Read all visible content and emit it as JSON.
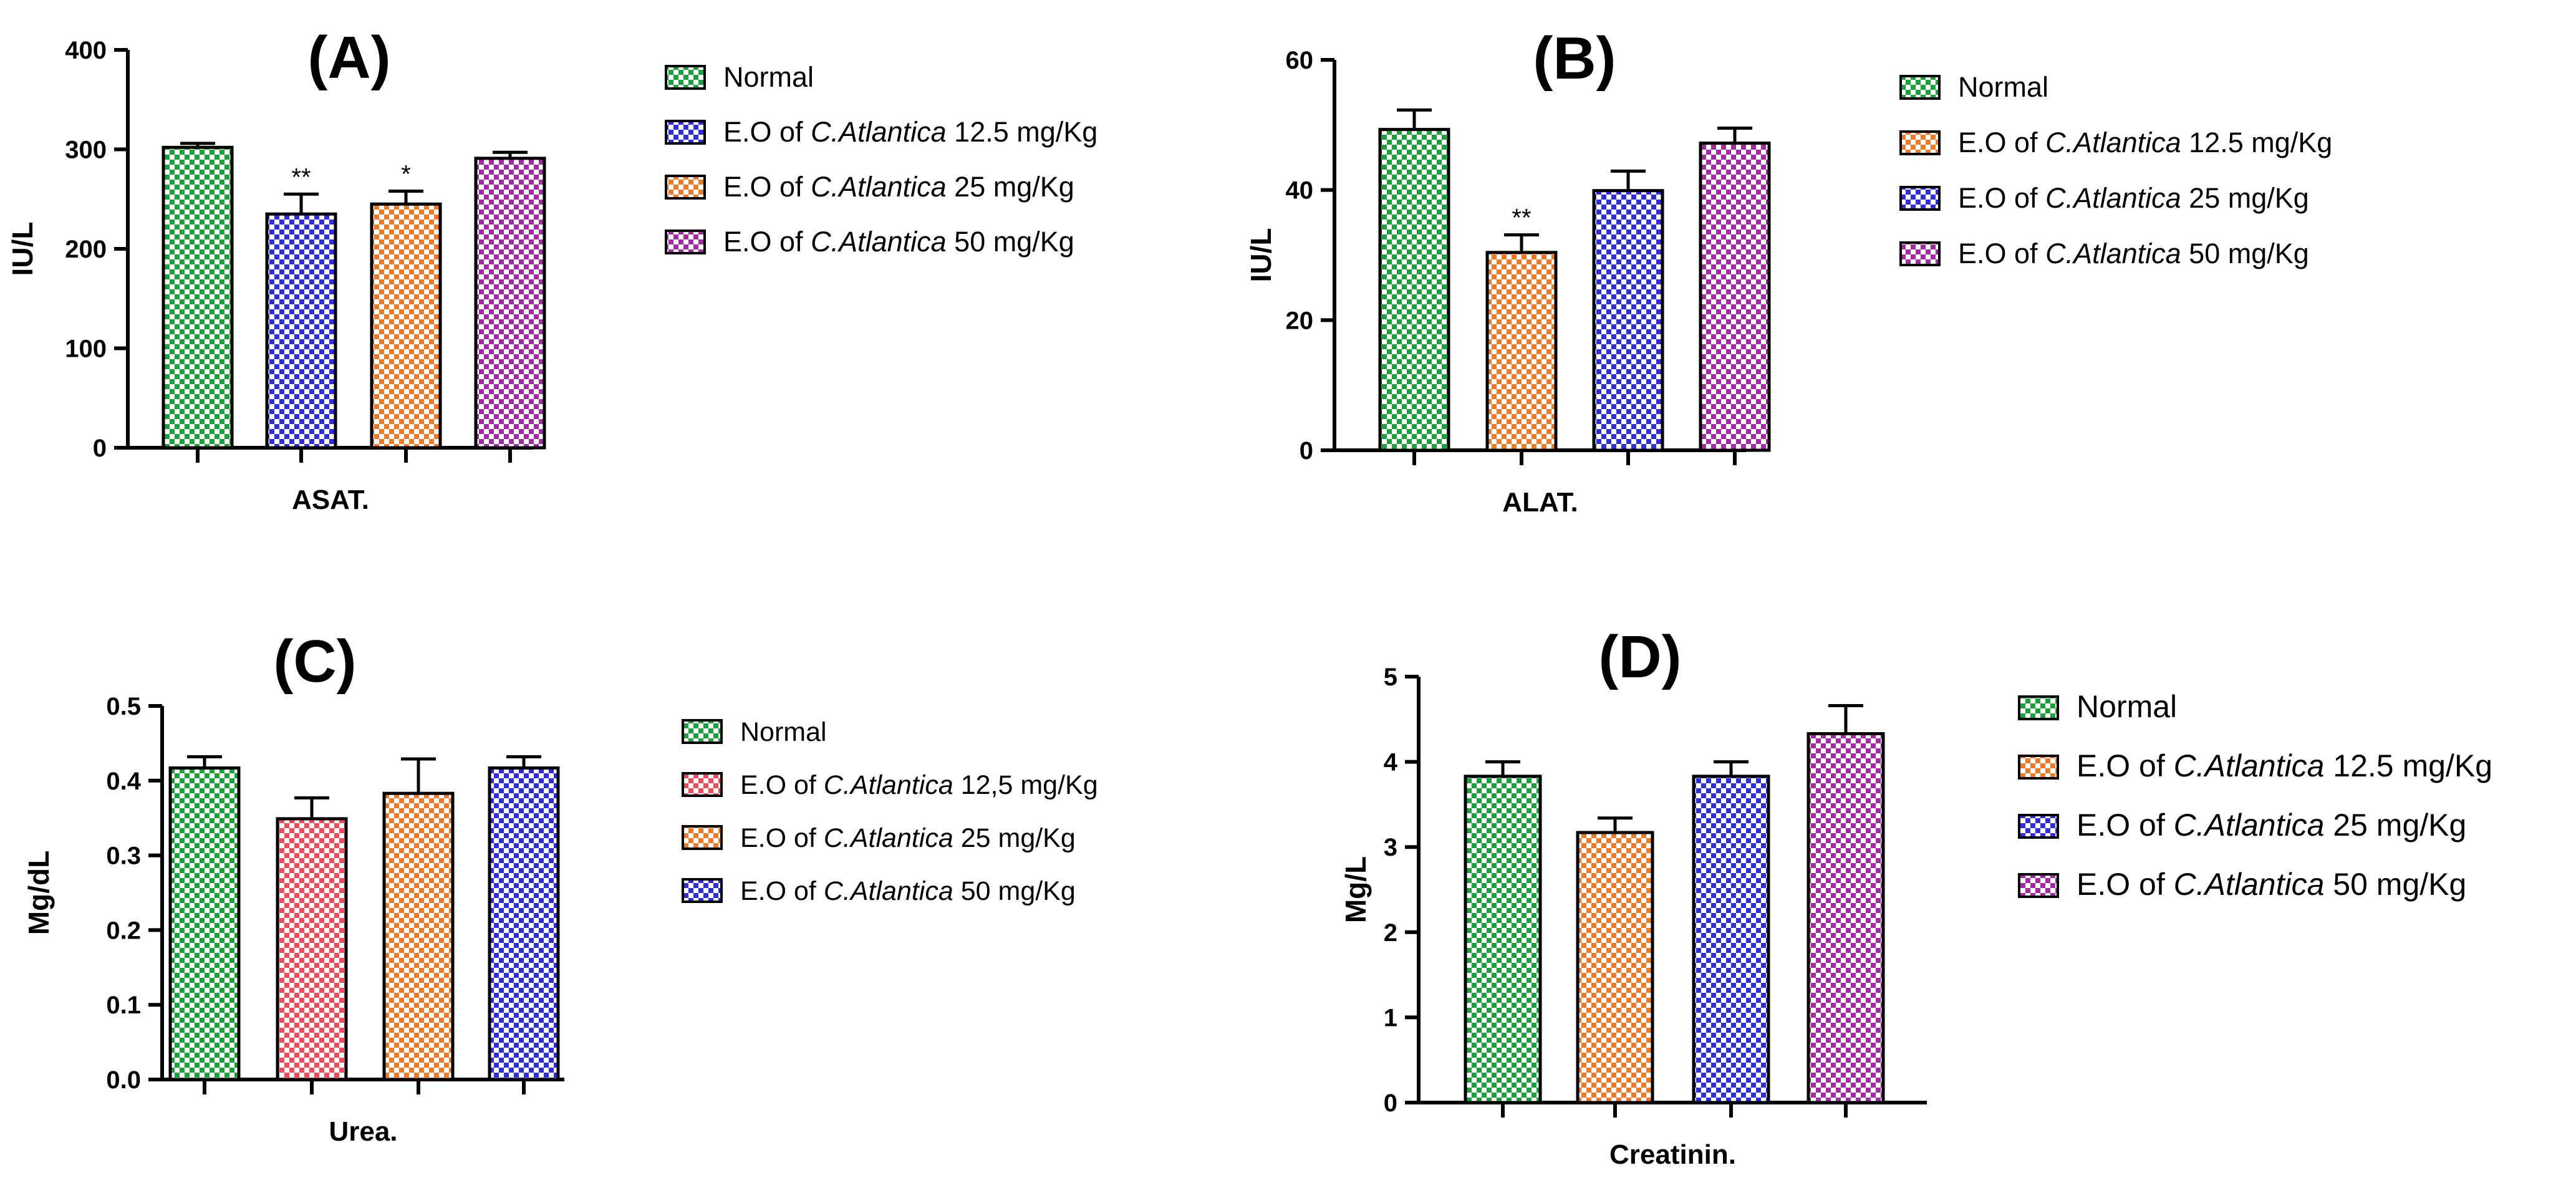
{
  "figure": {
    "panels": [
      {
        "id": "A",
        "panel_label": "(A)",
        "chart_data": {
          "type": "bar",
          "title": "(A)",
          "xlabel": "ASAT.",
          "ylabel": "IU/L",
          "ylim": [
            0,
            400
          ],
          "yticks": [
            0,
            100,
            200,
            300,
            400
          ],
          "ytick_labels": [
            "0",
            "100",
            "200",
            "300",
            "400"
          ],
          "series": [
            {
              "name": "Normal",
              "name_prefix": "Normal",
              "name_italic": "",
              "name_suffix": "",
              "color": "#1aa33a",
              "value": 302,
              "error": 4,
              "sig": ""
            },
            {
              "name": "E.O of C.Atlantica 12.5 mg/Kg",
              "name_prefix": "E.O of ",
              "name_italic": "C.Atlantica",
              "name_suffix": " 12.5 mg/Kg",
              "color": "#2e2ee0",
              "value": 235,
              "error": 20,
              "sig": "**"
            },
            {
              "name": "E.O of C.Atlantica 25 mg/Kg",
              "name_prefix": "E.O of ",
              "name_italic": "C.Atlantica",
              "name_suffix": " 25 mg/Kg",
              "color": "#f07a26",
              "value": 245,
              "error": 13,
              "sig": "*"
            },
            {
              "name": "E.O of C.Atlantica 50 mg/Kg",
              "name_prefix": "E.O of ",
              "name_italic": "C.Atlantica",
              "name_suffix": " 50 mg/Kg",
              "color": "#a62aa6",
              "value": 291,
              "error": 6,
              "sig": ""
            }
          ]
        }
      },
      {
        "id": "B",
        "panel_label": "(B)",
        "chart_data": {
          "type": "bar",
          "title": "(B)",
          "xlabel": "ALAT.",
          "ylabel": "IU/L",
          "ylim": [
            0,
            60
          ],
          "yticks": [
            0,
            20,
            40,
            60
          ],
          "ytick_labels": [
            "0",
            "20",
            "40",
            "60"
          ],
          "series": [
            {
              "name": "Normal",
              "name_prefix": "Normal",
              "name_italic": "",
              "name_suffix": "",
              "color": "#1aa33a",
              "value": 49.3,
              "error": 3,
              "sig": ""
            },
            {
              "name": "E.O of C.Atlantica 12.5 mg/Kg",
              "name_prefix": "E.O of ",
              "name_italic": "C.Atlantica",
              "name_suffix": " 12.5 mg/Kg",
              "color": "#f07a26",
              "value": 30.4,
              "error": 2.7,
              "sig": "**"
            },
            {
              "name": "E.O of C.Atlantica 25 mg/Kg",
              "name_prefix": "E.O of ",
              "name_italic": "C.Atlantica",
              "name_suffix": " 25 mg/Kg",
              "color": "#2e2ee0",
              "value": 39.9,
              "error": 3,
              "sig": ""
            },
            {
              "name": "E.O of C.Atlantica 50 mg/Kg",
              "name_prefix": "E.O of ",
              "name_italic": "C.Atlantica",
              "name_suffix": " 50 mg/Kg",
              "color": "#a62aa6",
              "value": 47.2,
              "error": 2.3,
              "sig": ""
            }
          ]
        }
      },
      {
        "id": "C",
        "panel_label": "(C)",
        "chart_data": {
          "type": "bar",
          "title": "(C)",
          "xlabel": "Urea.",
          "ylabel": "Mg/dL",
          "ylim": [
            0,
            0.5
          ],
          "yticks": [
            0,
            0.1,
            0.2,
            0.3,
            0.4,
            0.5
          ],
          "ytick_labels": [
            "0.0",
            "0.1",
            "0.2",
            "0.3",
            "0.4",
            "0.5"
          ],
          "series": [
            {
              "name": "Normal",
              "name_prefix": "Normal",
              "name_italic": "",
              "name_suffix": "",
              "color": "#1aa33a",
              "value": 0.417,
              "error": 0.015,
              "sig": ""
            },
            {
              "name": "E.O of C.Atlantica 12,5 mg/Kg",
              "name_prefix": "E.O of ",
              "name_italic": "C.Atlantica",
              "name_suffix": " 12,5 mg/Kg",
              "color": "#f04a58",
              "value": 0.349,
              "error": 0.028,
              "sig": ""
            },
            {
              "name": "E.O of C.Atlantica 25 mg/Kg",
              "name_prefix": "E.O of ",
              "name_italic": "C.Atlantica",
              "name_suffix": " 25 mg/Kg",
              "color": "#f07a26",
              "value": 0.383,
              "error": 0.046,
              "sig": ""
            },
            {
              "name": "E.O of C.Atlantica 50 mg/Kg",
              "name_prefix": "E.O of ",
              "name_italic": "C.Atlantica",
              "name_suffix": " 50 mg/Kg",
              "color": "#2e2ee0",
              "value": 0.417,
              "error": 0.015,
              "sig": ""
            }
          ]
        }
      },
      {
        "id": "D",
        "panel_label": "(D)",
        "chart_data": {
          "type": "bar",
          "title": "(D)",
          "xlabel": "Creatinin.",
          "ylabel": "Mg/L",
          "ylim": [
            0,
            5
          ],
          "yticks": [
            0,
            1,
            2,
            3,
            4,
            5
          ],
          "ytick_labels": [
            "0",
            "1",
            "2",
            "3",
            "4",
            "5"
          ],
          "series": [
            {
              "name": "Normal",
              "name_prefix": "Normal",
              "name_italic": "",
              "name_suffix": "",
              "color": "#1aa33a",
              "value": 3.83,
              "error": 0.17,
              "sig": ""
            },
            {
              "name": "E.O of C.Atlantica 12.5 mg/Kg",
              "name_prefix": "E.O of ",
              "name_italic": "C.Atlantica",
              "name_suffix": " 12.5 mg/Kg",
              "color": "#f07a26",
              "value": 3.17,
              "error": 0.17,
              "sig": ""
            },
            {
              "name": "E.O of C.Atlantica 25 mg/Kg",
              "name_prefix": "E.O of ",
              "name_italic": "C.Atlantica",
              "name_suffix": " 25 mg/Kg",
              "color": "#2e2ee0",
              "value": 3.83,
              "error": 0.17,
              "sig": ""
            },
            {
              "name": "E.O of C.Atlantica 50 mg/Kg",
              "name_prefix": "E.O of ",
              "name_italic": "C.Atlantica",
              "name_suffix": " 50 mg/Kg",
              "color": "#a62aa6",
              "value": 4.33,
              "error": 0.33,
              "sig": ""
            }
          ]
        }
      }
    ]
  }
}
